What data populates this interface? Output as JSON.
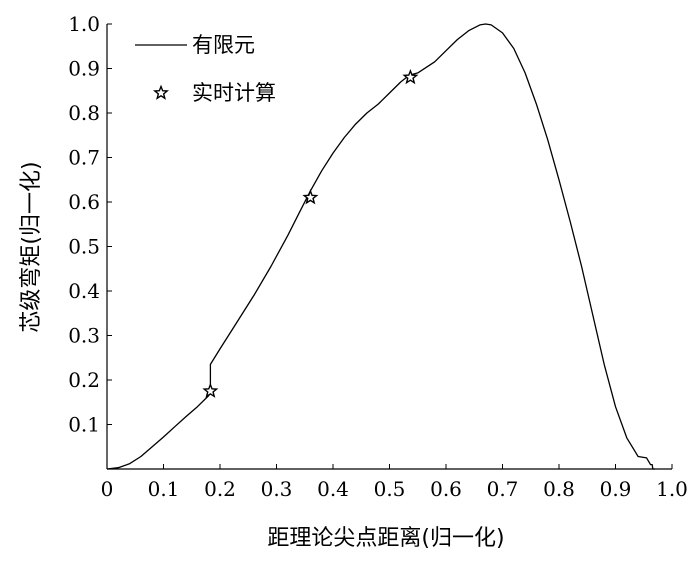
{
  "chart_data": {
    "type": "line",
    "title": "",
    "xlabel": "距理论尖点距离(归一化)",
    "ylabel": "芯级弯矩(归一化)",
    "xlim": [
      0,
      1.0
    ],
    "ylim": [
      0,
      1.0
    ],
    "x_ticks": [
      "0",
      "0.1",
      "0.2",
      "0.3",
      "0.4",
      "0.5",
      "0.6",
      "0.7",
      "0.8",
      "0.9",
      "1.0"
    ],
    "y_ticks": [
      "0.1",
      "0.2",
      "0.3",
      "0.4",
      "0.5",
      "0.6",
      "0.7",
      "0.8",
      "0.9",
      "1.0"
    ],
    "grid": false,
    "legend_position": "top-left",
    "series": [
      {
        "name": "有限元",
        "style": "line",
        "color": "#000000",
        "x": [
          0.0,
          0.02,
          0.04,
          0.06,
          0.08,
          0.1,
          0.12,
          0.14,
          0.16,
          0.18,
          0.183,
          0.183,
          0.2,
          0.23,
          0.26,
          0.29,
          0.32,
          0.34,
          0.36,
          0.38,
          0.4,
          0.42,
          0.44,
          0.46,
          0.48,
          0.5,
          0.52,
          0.535,
          0.55,
          0.58,
          0.6,
          0.62,
          0.64,
          0.66,
          0.67,
          0.68,
          0.7,
          0.72,
          0.74,
          0.76,
          0.78,
          0.8,
          0.82,
          0.84,
          0.86,
          0.88,
          0.9,
          0.92,
          0.94,
          0.955,
          0.962,
          0.965,
          0.966,
          0.97
        ],
        "y": [
          0.0,
          0.003,
          0.012,
          0.028,
          0.05,
          0.072,
          0.095,
          0.118,
          0.14,
          0.165,
          0.172,
          0.235,
          0.27,
          0.33,
          0.39,
          0.455,
          0.525,
          0.575,
          0.625,
          0.67,
          0.71,
          0.745,
          0.775,
          0.8,
          0.82,
          0.845,
          0.87,
          0.885,
          0.89,
          0.915,
          0.94,
          0.965,
          0.985,
          0.998,
          1.0,
          0.998,
          0.98,
          0.945,
          0.89,
          0.82,
          0.74,
          0.65,
          0.555,
          0.455,
          0.345,
          0.235,
          0.14,
          0.07,
          0.028,
          0.025,
          0.01,
          0.01,
          0.0,
          0.0
        ]
      },
      {
        "name": "实时计算",
        "style": "marker-star",
        "color": "#000000",
        "x": [
          0.183,
          0.36,
          0.537
        ],
        "y": [
          0.175,
          0.61,
          0.88
        ]
      }
    ]
  }
}
